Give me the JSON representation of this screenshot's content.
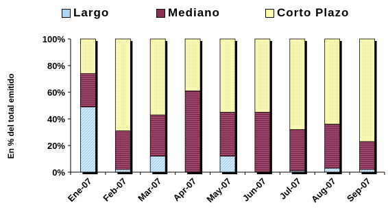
{
  "chart_data": {
    "type": "bar",
    "stacked": true,
    "stack_mode": "percent",
    "categories": [
      "Ene-07",
      "Feb-07",
      "Mar-07",
      "Apr-07",
      "May-07",
      "Jun-07",
      "Jul-07",
      "Aug-07",
      "Sep-07"
    ],
    "series": [
      {
        "name": "Largo",
        "values": [
          49,
          2,
          12,
          0,
          12,
          0,
          1,
          3,
          2
        ],
        "color": "#a8d4f5"
      },
      {
        "name": "Mediano",
        "values": [
          25,
          29,
          31,
          61,
          33,
          45,
          31,
          33,
          21
        ],
        "color": "#8b2e52"
      },
      {
        "name": "Corto Plazo",
        "values": [
          26,
          69,
          57,
          39,
          55,
          55,
          68,
          64,
          77
        ],
        "color": "#ffffb0"
      }
    ],
    "ylabel": "En % del total emitido",
    "ylim": [
      0,
      100
    ],
    "yticks": [
      "0%",
      "20%",
      "40%",
      "60%",
      "80%",
      "100%"
    ],
    "grid": false,
    "legend_position": "top"
  }
}
